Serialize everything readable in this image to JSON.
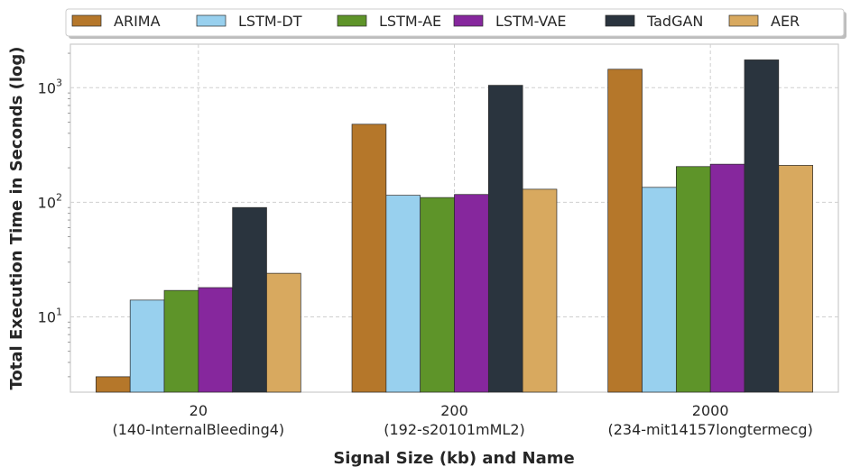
{
  "chart_data": {
    "type": "bar",
    "title": "",
    "xlabel": "Signal Size (kb) and Name",
    "ylabel": "Total Execution Time in Seconds (log)",
    "yscale": "log",
    "ylim": [
      2.2,
      2400
    ],
    "grid": true,
    "legend_position": "top",
    "categories": [
      {
        "line1": "20",
        "line2": "(140-InternalBleeding4)"
      },
      {
        "line1": "200",
        "line2": "(192-s20101mML2)"
      },
      {
        "line1": "2000",
        "line2": "(234-mit14157longtermecg)"
      }
    ],
    "yticks": [
      {
        "value": 10,
        "base": "10",
        "exp": "1"
      },
      {
        "value": 100,
        "base": "10",
        "exp": "2"
      },
      {
        "value": 1000,
        "base": "10",
        "exp": "3"
      }
    ],
    "series": [
      {
        "name": "ARIMA",
        "color": "#b5772a",
        "values": [
          3,
          480,
          1450
        ]
      },
      {
        "name": "LSTM-DT",
        "color": "#98d0ee",
        "values": [
          14,
          115,
          135
        ]
      },
      {
        "name": "LSTM-AE",
        "color": "#5e9429",
        "values": [
          17,
          110,
          205
        ]
      },
      {
        "name": "LSTM-VAE",
        "color": "#86279d",
        "values": [
          18,
          117,
          215
        ]
      },
      {
        "name": "TadGAN",
        "color": "#2a343e",
        "values": [
          90,
          1050,
          1750
        ]
      },
      {
        "name": "AER",
        "color": "#d8a95f",
        "values": [
          24,
          130,
          210
        ]
      }
    ]
  }
}
